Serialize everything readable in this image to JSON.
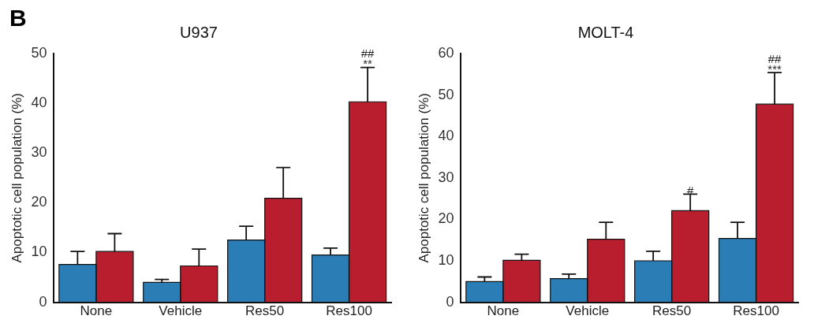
{
  "chart_data": [
    {
      "type": "bar",
      "title": "U937",
      "ylabel": "Apoptotic cell population (%)",
      "categories": [
        "None",
        "Vehicle",
        "Res50",
        "Res100"
      ],
      "ylim": [
        0,
        50
      ],
      "yticks": [
        0,
        10,
        20,
        30,
        40,
        50
      ],
      "grid": false,
      "legend": false,
      "series": [
        {
          "color": "#2a7db5",
          "values": [
            7.6,
            4.0,
            12.5,
            9.5
          ],
          "errors": [
            2.6,
            0.6,
            2.8,
            1.4
          ]
        },
        {
          "color": "#b81e2d",
          "values": [
            10.2,
            7.3,
            20.9,
            40.3
          ],
          "errors": [
            3.6,
            3.4,
            6.2,
            6.9
          ]
        }
      ],
      "annotations": [
        "B",
        {
          "text": "**",
          "x": "Res100",
          "y": 40.3
        },
        "##"
      ]
    },
    {
      "type": "bar",
      "title": "MOLT-4",
      "ylabel": "Apoptotic cell population (%)",
      "categories": [
        "None",
        "Vehicle",
        "Res50",
        "Res100"
      ],
      "ylim": [
        0,
        60
      ],
      "yticks": [
        0,
        10,
        20,
        30,
        40,
        50,
        60
      ],
      "grid": false,
      "legend": false,
      "series": [
        {
          "color": "#2a7db5",
          "values": [
            5.0,
            5.7,
            10.0,
            15.4
          ],
          "errors": [
            1.1,
            1.1,
            2.3,
            3.9
          ]
        },
        {
          "color": "#b81e2d",
          "values": [
            10.1,
            15.2,
            22.1,
            47.8
          ],
          "errors": [
            1.5,
            4.1,
            4.0,
            7.6
          ]
        }
      ],
      "annotations": [
        {
          "text": "#",
          "x": "Res50",
          "y": 22.1
        },
        {
          "text": "***",
          "x": "Res100",
          "y": 47.8
        },
        "##"
      ]
    }
  ]
}
